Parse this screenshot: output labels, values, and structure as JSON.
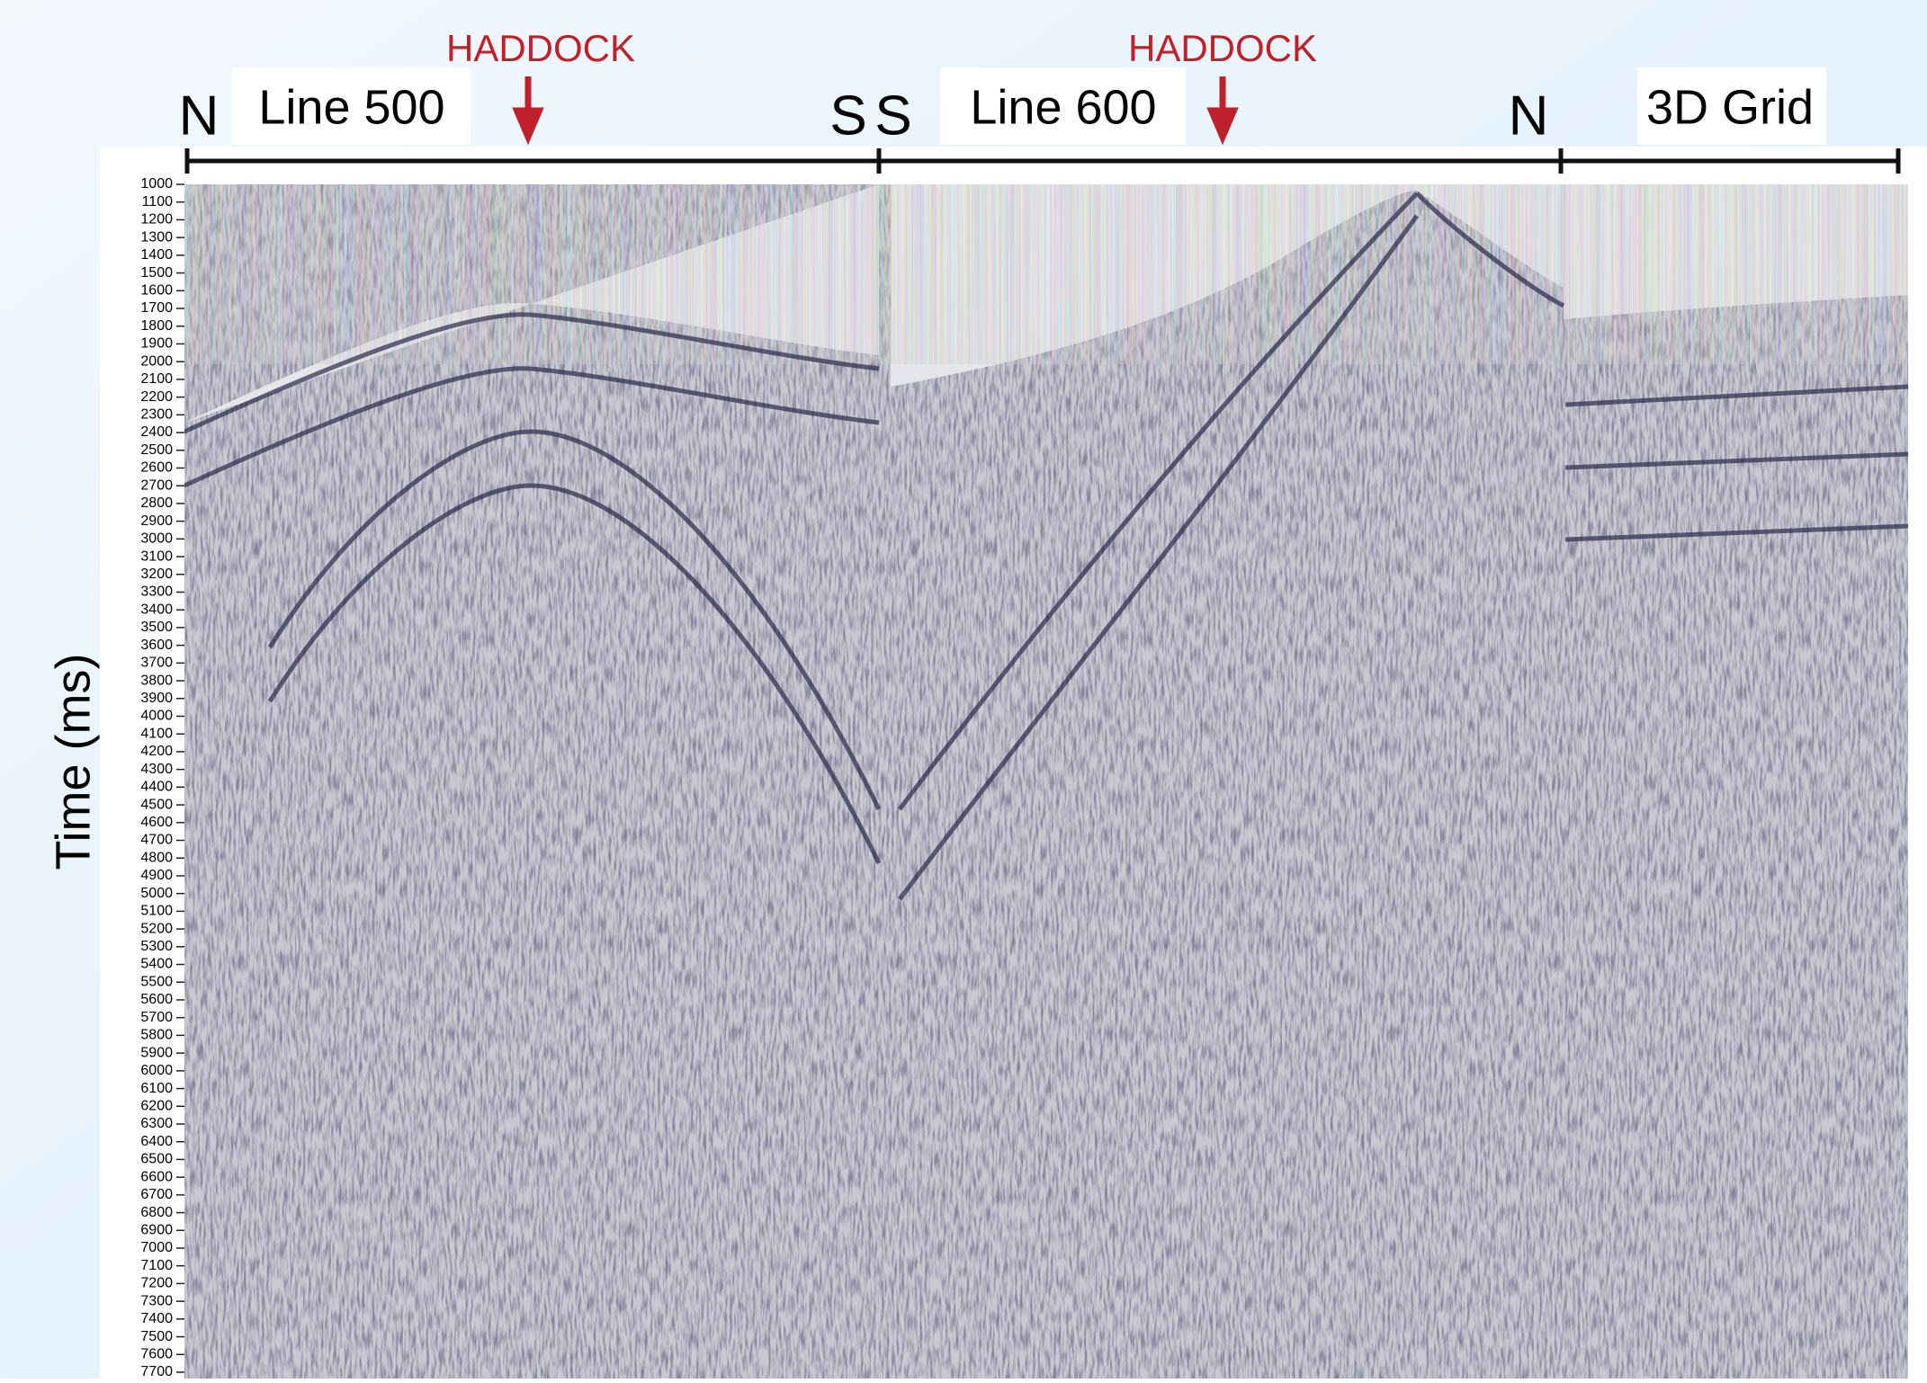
{
  "header": {
    "line500": {
      "start": "N",
      "label": "Line 500",
      "marker": "HADDOCK",
      "end": "S"
    },
    "line600": {
      "start": "S",
      "label": "Line 600",
      "marker": "HADDOCK",
      "end": "N"
    },
    "grid": {
      "label": "3D Grid"
    }
  },
  "y_axis": {
    "title": "Time (ms)",
    "lim": [
      1000,
      7700
    ],
    "ticks": [
      1000,
      1100,
      1200,
      1300,
      1400,
      1500,
      1600,
      1700,
      1800,
      1900,
      2000,
      2100,
      2200,
      2300,
      2400,
      2500,
      2600,
      2700,
      2800,
      2900,
      3000,
      3100,
      3200,
      3300,
      3400,
      3500,
      3600,
      3700,
      3800,
      3900,
      4000,
      4100,
      4200,
      4300,
      4400,
      4500,
      4600,
      4700,
      4800,
      4900,
      5000,
      5100,
      5200,
      5300,
      5400,
      5500,
      5600,
      5700,
      5800,
      5900,
      6000,
      6100,
      6200,
      6300,
      6400,
      6500,
      6600,
      6700,
      6800,
      6900,
      7000,
      7100,
      7200,
      7300,
      7400,
      7500,
      7600,
      7700
    ]
  }
}
